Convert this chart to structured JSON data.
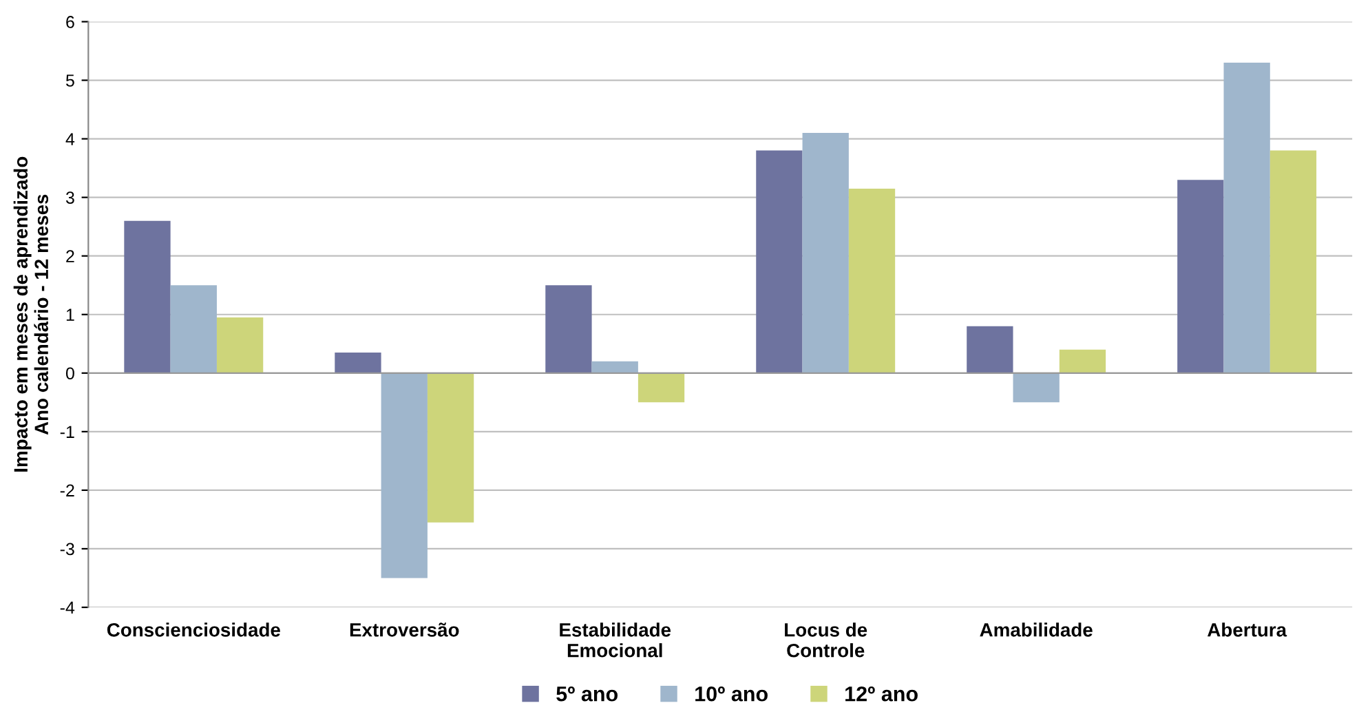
{
  "chart_data": {
    "type": "bar",
    "ylabel": "Impacto em meses de aprendizado\nAno calendário - 12 meses",
    "categories": [
      "Conscienciosidade",
      "Extroversão",
      "Estabilidade\nEmocional",
      "Locus de\nControle",
      "Amabilidade",
      "Abertura"
    ],
    "series": [
      {
        "name": "5º ano",
        "color": "#6e739f",
        "values": [
          2.6,
          0.35,
          1.5,
          3.8,
          0.8,
          3.3
        ]
      },
      {
        "name": "10º ano",
        "color": "#9fb6cc",
        "values": [
          1.5,
          -3.5,
          0.2,
          4.1,
          -0.5,
          5.3
        ]
      },
      {
        "name": "12º ano",
        "color": "#cdd57a",
        "values": [
          0.95,
          -2.55,
          -0.5,
          3.15,
          0.4,
          3.8
        ]
      }
    ],
    "ylim": [
      -4,
      6
    ],
    "yticks": [
      -4,
      -3,
      -2,
      -1,
      0,
      1,
      2,
      3,
      4,
      5,
      6
    ],
    "grid": "y",
    "legend": "bottom"
  }
}
